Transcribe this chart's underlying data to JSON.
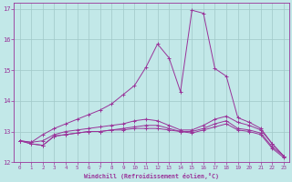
{
  "xlabel": "Windchill (Refroidissement éolien,°C)",
  "xlim": [
    -0.5,
    23.5
  ],
  "ylim": [
    12,
    17.2
  ],
  "yticks": [
    12,
    13,
    14,
    15,
    16,
    17
  ],
  "xticks": [
    0,
    1,
    2,
    3,
    4,
    5,
    6,
    7,
    8,
    9,
    10,
    11,
    12,
    13,
    14,
    15,
    16,
    17,
    18,
    19,
    20,
    21,
    22,
    23
  ],
  "bg_color": "#c2e8e8",
  "line_color": "#993399",
  "grid_color": "#a0c8c8",
  "curves": [
    [
      12.7,
      12.6,
      12.55,
      12.85,
      12.9,
      12.95,
      13.0,
      13.0,
      13.05,
      13.05,
      13.1,
      13.1,
      13.1,
      13.05,
      13.0,
      12.95,
      13.05,
      13.15,
      13.25,
      13.05,
      13.0,
      12.9,
      12.45,
      12.15
    ],
    [
      12.7,
      12.6,
      12.55,
      12.85,
      12.9,
      12.95,
      13.0,
      13.0,
      13.05,
      13.1,
      13.15,
      13.2,
      13.2,
      13.1,
      13.0,
      13.0,
      13.1,
      13.25,
      13.35,
      13.1,
      13.05,
      12.95,
      12.5,
      12.2
    ],
    [
      12.7,
      12.65,
      12.7,
      12.9,
      13.0,
      13.05,
      13.1,
      13.15,
      13.2,
      13.25,
      13.35,
      13.4,
      13.35,
      13.2,
      13.05,
      13.05,
      13.2,
      13.4,
      13.5,
      13.3,
      13.2,
      13.05,
      12.6,
      12.2
    ],
    [
      12.7,
      12.65,
      12.9,
      13.1,
      13.25,
      13.4,
      13.55,
      13.7,
      13.9,
      14.2,
      14.5,
      15.1,
      15.85,
      15.4,
      14.3,
      16.95,
      16.85,
      15.05,
      14.8,
      13.45,
      13.3,
      13.1,
      12.6,
      12.2
    ]
  ]
}
